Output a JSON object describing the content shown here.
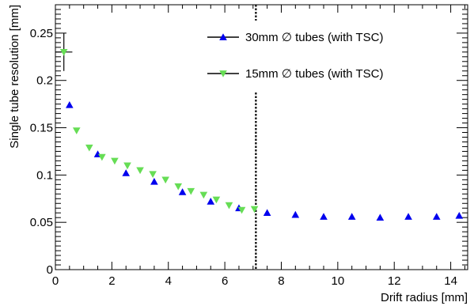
{
  "chart_data": {
    "type": "scatter",
    "title": "",
    "xlabel": "Drift radius [mm]",
    "ylabel": "Single tube resolution [mm]",
    "xlim": [
      0,
      14.6
    ],
    "ylim": [
      0,
      0.28
    ],
    "x_ticks": [
      0,
      2,
      4,
      6,
      8,
      10,
      12,
      14
    ],
    "x_tick_labels": [
      "0",
      "2",
      "4",
      "6",
      "8",
      "10",
      "12",
      "14"
    ],
    "y_ticks": [
      0,
      0.05,
      0.1,
      0.15,
      0.2,
      0.25
    ],
    "y_tick_labels": [
      "0",
      "0.05",
      "0.1",
      "0.15",
      "0.2",
      "0.25"
    ],
    "grid": false,
    "legend_position": "top-right",
    "vertical_marker": {
      "x": 7.1,
      "style": "dotted",
      "color": "#000000"
    },
    "series": [
      {
        "name": "30mm ∅ tubes (with TSC)",
        "marker": "triangle-up",
        "color": "#0000ee",
        "x": [
          0.5,
          1.5,
          2.5,
          3.5,
          4.5,
          5.5,
          6.5,
          7.5,
          8.5,
          9.5,
          10.5,
          11.5,
          12.5,
          13.5,
          14.3
        ],
        "y": [
          0.174,
          0.122,
          0.102,
          0.093,
          0.082,
          0.072,
          0.065,
          0.06,
          0.058,
          0.056,
          0.056,
          0.055,
          0.056,
          0.056,
          0.057
        ]
      },
      {
        "name": "15mm ∅ tubes (with TSC)",
        "marker": "triangle-down",
        "color": "#66dd55",
        "x": [
          0.3,
          0.75,
          1.2,
          1.65,
          2.1,
          2.55,
          3.0,
          3.45,
          3.9,
          4.35,
          4.8,
          5.25,
          5.7,
          6.15,
          6.6,
          7.05
        ],
        "y": [
          0.23,
          0.147,
          0.129,
          0.119,
          0.115,
          0.11,
          0.105,
          0.101,
          0.095,
          0.088,
          0.083,
          0.079,
          0.074,
          0.068,
          0.063,
          0.064
        ],
        "error_point": {
          "x": 0.3,
          "y": 0.23,
          "xerr": 0.3,
          "yerr": 0.02
        }
      }
    ]
  }
}
